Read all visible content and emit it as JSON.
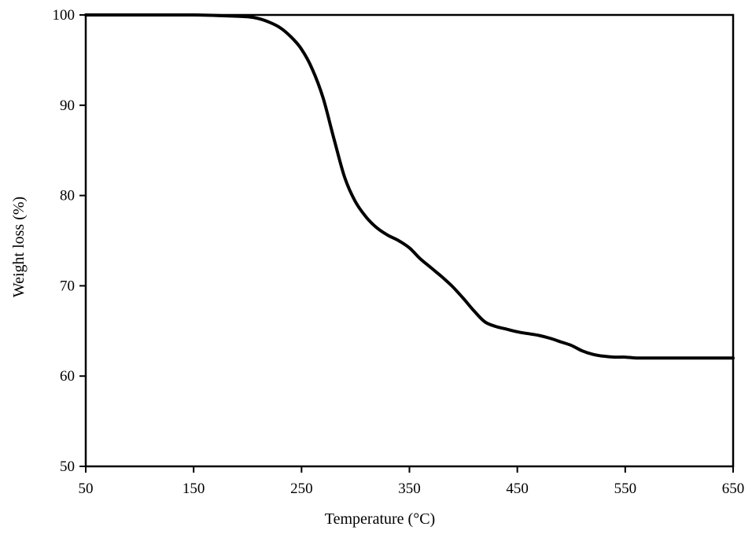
{
  "chart_data": {
    "type": "line",
    "title": "",
    "xlabel": "Temperature  (°C)",
    "ylabel": "Weight loss (%)",
    "xlim": [
      50,
      650
    ],
    "ylim": [
      50,
      100
    ],
    "xticks": [
      50,
      150,
      250,
      350,
      450,
      550,
      650
    ],
    "yticks": [
      50,
      60,
      70,
      80,
      90,
      100
    ],
    "xtick_labels": [
      "50",
      "150",
      "250",
      "350",
      "450",
      "550",
      "650"
    ],
    "ytick_labels": [
      "50",
      "60",
      "70",
      "80",
      "90",
      "100"
    ],
    "grid": false,
    "legend": "none",
    "line_color": "#000000",
    "series": [
      {
        "x": [
          50,
          100,
          150,
          180,
          200,
          210,
          220,
          230,
          240,
          250,
          260,
          270,
          280,
          290,
          300,
          310,
          320,
          330,
          340,
          350,
          360,
          370,
          380,
          390,
          400,
          410,
          420,
          430,
          440,
          450,
          460,
          470,
          480,
          490,
          500,
          510,
          520,
          530,
          540,
          550,
          560,
          570,
          580,
          600,
          620,
          650
        ],
        "values": [
          100,
          100,
          100,
          99.9,
          99.8,
          99.6,
          99.2,
          98.6,
          97.6,
          96.2,
          94,
          90.8,
          86.3,
          82,
          79.3,
          77.6,
          76.4,
          75.6,
          75,
          74.2,
          73,
          72,
          71,
          69.9,
          68.6,
          67.2,
          66,
          65.5,
          65.2,
          64.9,
          64.7,
          64.5,
          64.2,
          63.8,
          63.4,
          62.8,
          62.4,
          62.2,
          62.1,
          62.1,
          62,
          62,
          62,
          62,
          62,
          62
        ]
      }
    ]
  }
}
